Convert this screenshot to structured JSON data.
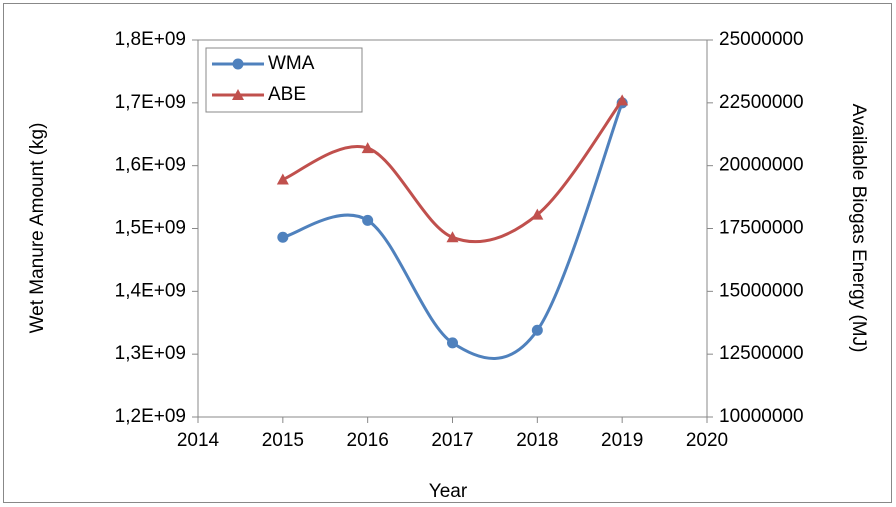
{
  "chart_data": {
    "type": "line",
    "smooth": true,
    "x": [
      2015,
      2016,
      2017,
      2018,
      2019
    ],
    "xlabel": "Year",
    "ylabel": "Wet Manure Amount (kg)",
    "y2label": "Available Biogas Energy (MJ)",
    "xlim": [
      2014,
      2020
    ],
    "xticks": [
      2014,
      2015,
      2016,
      2017,
      2018,
      2019,
      2020
    ],
    "ylim": [
      1200000000,
      1800000000
    ],
    "yticks": [
      {
        "value": 1200000000,
        "label": "1,2E+09"
      },
      {
        "value": 1300000000,
        "label": "1,3E+09"
      },
      {
        "value": 1400000000,
        "label": "1,4E+09"
      },
      {
        "value": 1500000000,
        "label": "1,5E+09"
      },
      {
        "value": 1600000000,
        "label": "1,6E+09"
      },
      {
        "value": 1700000000,
        "label": "1,7E+09"
      },
      {
        "value": 1800000000,
        "label": "1,8E+09"
      }
    ],
    "y2lim": [
      10000000,
      25000000
    ],
    "y2ticks": [
      10000000,
      12500000,
      15000000,
      17500000,
      20000000,
      22500000,
      25000000
    ],
    "grid": false,
    "legend": "upper left",
    "series": [
      {
        "name": "WMA",
        "color": "#4f81bd",
        "marker": "circle",
        "values": [
          1486000000,
          1513000000,
          1318000000,
          1338000000,
          1700000000
        ]
      },
      {
        "name": "ABE",
        "color": "#c0504d",
        "marker": "triangle",
        "axis": "y2",
        "values": [
          19450000,
          20700000,
          17150000,
          18050000,
          22600000
        ]
      }
    ]
  }
}
